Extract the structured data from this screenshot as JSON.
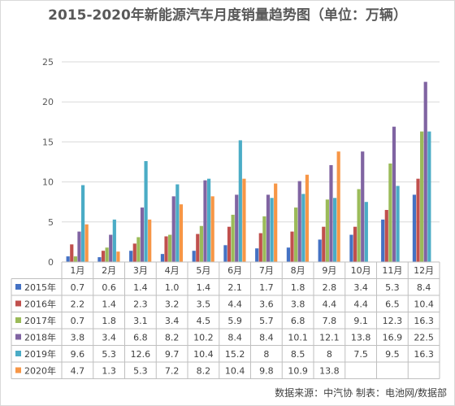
{
  "chart_data": {
    "type": "bar",
    "title": "2015-2020年新能源汽车月度销量趋势图（单位：万辆）",
    "categories": [
      "1月",
      "2月",
      "3月",
      "4月",
      "5月",
      "6月",
      "7月",
      "8月",
      "9月",
      "10月",
      "11月",
      "12月"
    ],
    "ylim": [
      0,
      25
    ],
    "yticks": [
      "0",
      "5",
      "10",
      "15",
      "20",
      "25"
    ],
    "grid": true,
    "legend": "table-below",
    "series": [
      {
        "name": "2015年",
        "color": "#4472c4",
        "values": [
          0.7,
          0.6,
          1.4,
          1.0,
          1.4,
          2.1,
          1.7,
          1.8,
          2.8,
          3.4,
          5.3,
          8.4
        ],
        "labels": [
          "0.7",
          "0.6",
          "1.4",
          "1.0",
          "1.4",
          "2.1",
          "1.7",
          "1.8",
          "2.8",
          "3.4",
          "5.3",
          "8.4"
        ]
      },
      {
        "name": "2016年",
        "color": "#c0504d",
        "values": [
          2.2,
          1.4,
          2.3,
          3.2,
          3.5,
          4.4,
          3.6,
          3.8,
          4.4,
          4.4,
          6.5,
          10.4
        ],
        "labels": [
          "2.2",
          "1.4",
          "2.3",
          "3.2",
          "3.5",
          "4.4",
          "3.6",
          "3.8",
          "4.4",
          "4.4",
          "6.5",
          "10.4"
        ]
      },
      {
        "name": "2017年",
        "color": "#9bbb59",
        "values": [
          0.7,
          1.8,
          3.1,
          3.4,
          4.5,
          5.9,
          5.7,
          6.8,
          7.8,
          9.1,
          12.3,
          16.3
        ],
        "labels": [
          "0.7",
          "1.8",
          "3.1",
          "3.4",
          "4.5",
          "5.9",
          "5.7",
          "6.8",
          "7.8",
          "9.1",
          "12.3",
          "16.3"
        ]
      },
      {
        "name": "2018年",
        "color": "#8064a2",
        "values": [
          3.8,
          3.4,
          6.8,
          8.2,
          10.2,
          8.4,
          8.4,
          10.1,
          12.1,
          13.8,
          16.9,
          22.5
        ],
        "labels": [
          "3.8",
          "3.4",
          "6.8",
          "8.2",
          "10.2",
          "8.4",
          "8.4",
          "10.1",
          "12.1",
          "13.8",
          "16.9",
          "22.5"
        ]
      },
      {
        "name": "2019年",
        "color": "#4bacc6",
        "values": [
          9.6,
          5.3,
          12.6,
          9.7,
          10.4,
          15.2,
          8,
          8.5,
          8,
          7.5,
          9.5,
          16.3
        ],
        "labels": [
          "9.6",
          "5.3",
          "12.6",
          "9.7",
          "10.4",
          "15.2",
          "8",
          "8.5",
          "8",
          "7.5",
          "9.5",
          "16.3"
        ]
      },
      {
        "name": "2020年",
        "color": "#f79646",
        "values": [
          4.7,
          1.3,
          5.3,
          7.2,
          8.2,
          10.4,
          9.8,
          10.9,
          13.8,
          null,
          null,
          null
        ],
        "labels": [
          "4.7",
          "1.3",
          "5.3",
          "7.2",
          "8.2",
          "10.4",
          "9.8",
          "10.9",
          "13.8",
          "",
          "",
          ""
        ]
      }
    ]
  },
  "footer": {
    "source": "数据来源：中汽协  制表：电池网/数据部"
  }
}
